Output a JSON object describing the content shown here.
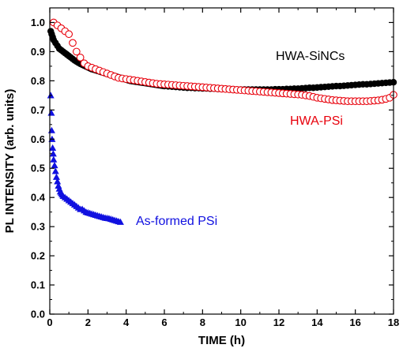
{
  "chart_data": {
    "type": "scatter",
    "xlabel": "TIME (h)",
    "ylabel": "PL INTENSITY (arb. units)",
    "xlim": [
      0,
      18
    ],
    "ylim": [
      0.0,
      1.05
    ],
    "xticks": [
      "0",
      "2",
      "4",
      "6",
      "8",
      "10",
      "12",
      "14",
      "16",
      "18"
    ],
    "yticks": [
      "0.0",
      "0.1",
      "0.2",
      "0.3",
      "0.4",
      "0.5",
      "0.6",
      "0.7",
      "0.8",
      "0.9",
      "1.0"
    ],
    "grid": false,
    "series": [
      {
        "name": "HWA-SiNCs",
        "color": "#000000",
        "marker": "filled-circle",
        "x": [
          0.05,
          0.1,
          0.15,
          0.2,
          0.3,
          0.4,
          0.5,
          0.6,
          0.7,
          0.8,
          0.9,
          1.0,
          1.1,
          1.2,
          1.3,
          1.4,
          1.5,
          1.6,
          1.7,
          1.8,
          1.9,
          2.0,
          2.1,
          2.2,
          2.3,
          2.4,
          2.5,
          2.6,
          2.7,
          2.8,
          2.9,
          3.0,
          3.1,
          3.2,
          3.3,
          3.4,
          3.5,
          3.6,
          3.7,
          3.8,
          3.9,
          4.0,
          4.1,
          4.2,
          4.3,
          4.4,
          4.5,
          4.6,
          4.7,
          4.8,
          4.9,
          5.0,
          5.1,
          5.2,
          5.3,
          5.4,
          5.5,
          5.6,
          5.7,
          5.8,
          5.9,
          6.0,
          6.2,
          6.4,
          6.6,
          6.8,
          7.0,
          7.2,
          7.4,
          7.6,
          7.8,
          8.0,
          8.2,
          8.4,
          8.6,
          8.8,
          9.0,
          9.2,
          9.4,
          9.6,
          9.8,
          10.0,
          10.2,
          10.4,
          10.6,
          10.8,
          11.0,
          11.2,
          11.4,
          11.6,
          11.8,
          12.0,
          12.2,
          12.4,
          12.6,
          12.8,
          13.0,
          13.2,
          13.4,
          13.6,
          13.8,
          14.0,
          14.2,
          14.4,
          14.6,
          14.8,
          15.0,
          15.2,
          15.4,
          15.6,
          15.8,
          16.0,
          16.2,
          16.4,
          16.6,
          16.8,
          17.0,
          17.2,
          17.4,
          17.6,
          17.8,
          18.0
        ],
        "y": [
          0.97,
          0.96,
          0.95,
          0.94,
          0.93,
          0.92,
          0.91,
          0.905,
          0.9,
          0.895,
          0.89,
          0.885,
          0.88,
          0.875,
          0.87,
          0.866,
          0.862,
          0.858,
          0.855,
          0.852,
          0.849,
          0.846,
          0.843,
          0.84,
          0.838,
          0.836,
          0.834,
          0.832,
          0.83,
          0.828,
          0.826,
          0.824,
          0.822,
          0.82,
          0.818,
          0.816,
          0.814,
          0.812,
          0.81,
          0.808,
          0.806,
          0.804,
          0.802,
          0.8,
          0.799,
          0.798,
          0.797,
          0.796,
          0.795,
          0.794,
          0.793,
          0.792,
          0.791,
          0.79,
          0.789,
          0.788,
          0.787,
          0.786,
          0.785,
          0.784,
          0.783,
          0.782,
          0.781,
          0.78,
          0.779,
          0.778,
          0.777,
          0.776,
          0.776,
          0.775,
          0.775,
          0.774,
          0.774,
          0.773,
          0.773,
          0.772,
          0.772,
          0.771,
          0.771,
          0.771,
          0.77,
          0.77,
          0.77,
          0.77,
          0.77,
          0.77,
          0.77,
          0.77,
          0.77,
          0.77,
          0.771,
          0.771,
          0.771,
          0.772,
          0.772,
          0.773,
          0.773,
          0.774,
          0.775,
          0.776,
          0.776,
          0.777,
          0.778,
          0.779,
          0.78,
          0.781,
          0.782,
          0.782,
          0.783,
          0.784,
          0.785,
          0.786,
          0.787,
          0.788,
          0.788,
          0.789,
          0.79,
          0.791,
          0.792,
          0.793,
          0.794,
          0.795
        ]
      },
      {
        "name": "HWA-PSi",
        "color": "#e8000b",
        "marker": "open-circle",
        "x": [
          0.2,
          0.4,
          0.6,
          0.8,
          1.0,
          1.2,
          1.4,
          1.6,
          1.8,
          2.0,
          2.2,
          2.4,
          2.6,
          2.8,
          3.0,
          3.2,
          3.4,
          3.6,
          3.8,
          4.0,
          4.2,
          4.4,
          4.6,
          4.8,
          5.0,
          5.2,
          5.4,
          5.6,
          5.8,
          6.0,
          6.2,
          6.4,
          6.6,
          6.8,
          7.0,
          7.2,
          7.4,
          7.6,
          7.8,
          8.0,
          8.2,
          8.4,
          8.6,
          8.8,
          9.0,
          9.2,
          9.4,
          9.6,
          9.8,
          10.0,
          10.2,
          10.4,
          10.6,
          10.8,
          11.0,
          11.2,
          11.4,
          11.6,
          11.8,
          12.0,
          12.2,
          12.4,
          12.6,
          12.8,
          13.0,
          13.2,
          13.4,
          13.6,
          13.8,
          14.0,
          14.2,
          14.4,
          14.6,
          14.8,
          15.0,
          15.2,
          15.4,
          15.6,
          15.8,
          16.0,
          16.2,
          16.4,
          16.6,
          16.8,
          17.0,
          17.2,
          17.4,
          17.6,
          17.8,
          18.0
        ],
        "y": [
          1.0,
          0.99,
          0.98,
          0.97,
          0.96,
          0.93,
          0.9,
          0.88,
          0.86,
          0.85,
          0.845,
          0.84,
          0.835,
          0.83,
          0.825,
          0.82,
          0.815,
          0.81,
          0.808,
          0.806,
          0.804,
          0.802,
          0.8,
          0.798,
          0.796,
          0.794,
          0.792,
          0.79,
          0.789,
          0.788,
          0.787,
          0.786,
          0.785,
          0.784,
          0.783,
          0.782,
          0.781,
          0.78,
          0.779,
          0.778,
          0.777,
          0.776,
          0.775,
          0.774,
          0.773,
          0.772,
          0.771,
          0.77,
          0.769,
          0.768,
          0.767,
          0.766,
          0.765,
          0.764,
          0.763,
          0.762,
          0.761,
          0.76,
          0.759,
          0.758,
          0.757,
          0.756,
          0.755,
          0.754,
          0.753,
          0.752,
          0.75,
          0.748,
          0.745,
          0.742,
          0.74,
          0.738,
          0.736,
          0.734,
          0.733,
          0.732,
          0.731,
          0.73,
          0.73,
          0.73,
          0.73,
          0.73,
          0.73,
          0.731,
          0.732,
          0.733,
          0.735,
          0.738,
          0.742,
          0.752
        ]
      },
      {
        "name": "As-formed PSi",
        "color": "#1010e0",
        "marker": "filled-triangle",
        "x": [
          0.05,
          0.08,
          0.1,
          0.12,
          0.15,
          0.18,
          0.2,
          0.25,
          0.3,
          0.35,
          0.4,
          0.45,
          0.5,
          0.55,
          0.6,
          0.65,
          0.7,
          0.8,
          0.9,
          1.0,
          1.1,
          1.2,
          1.3,
          1.4,
          1.5,
          1.6,
          1.7,
          1.8,
          1.9,
          2.0,
          2.1,
          2.2,
          2.3,
          2.4,
          2.5,
          2.6,
          2.7,
          2.8,
          2.9,
          3.0,
          3.1,
          3.2,
          3.3,
          3.4,
          3.5,
          3.6,
          3.7
        ],
        "y": [
          0.75,
          0.69,
          0.63,
          0.6,
          0.57,
          0.55,
          0.53,
          0.51,
          0.49,
          0.47,
          0.455,
          0.44,
          0.43,
          0.42,
          0.415,
          0.41,
          0.405,
          0.4,
          0.395,
          0.39,
          0.385,
          0.38,
          0.375,
          0.37,
          0.365,
          0.36,
          0.36,
          0.355,
          0.35,
          0.348,
          0.346,
          0.344,
          0.342,
          0.34,
          0.338,
          0.336,
          0.334,
          0.332,
          0.33,
          0.329,
          0.328,
          0.326,
          0.324,
          0.322,
          0.32,
          0.318,
          0.316
        ]
      }
    ],
    "annotations": [
      "HWA-SiNCs",
      "HWA-PSi",
      "As-formed PSi"
    ]
  }
}
